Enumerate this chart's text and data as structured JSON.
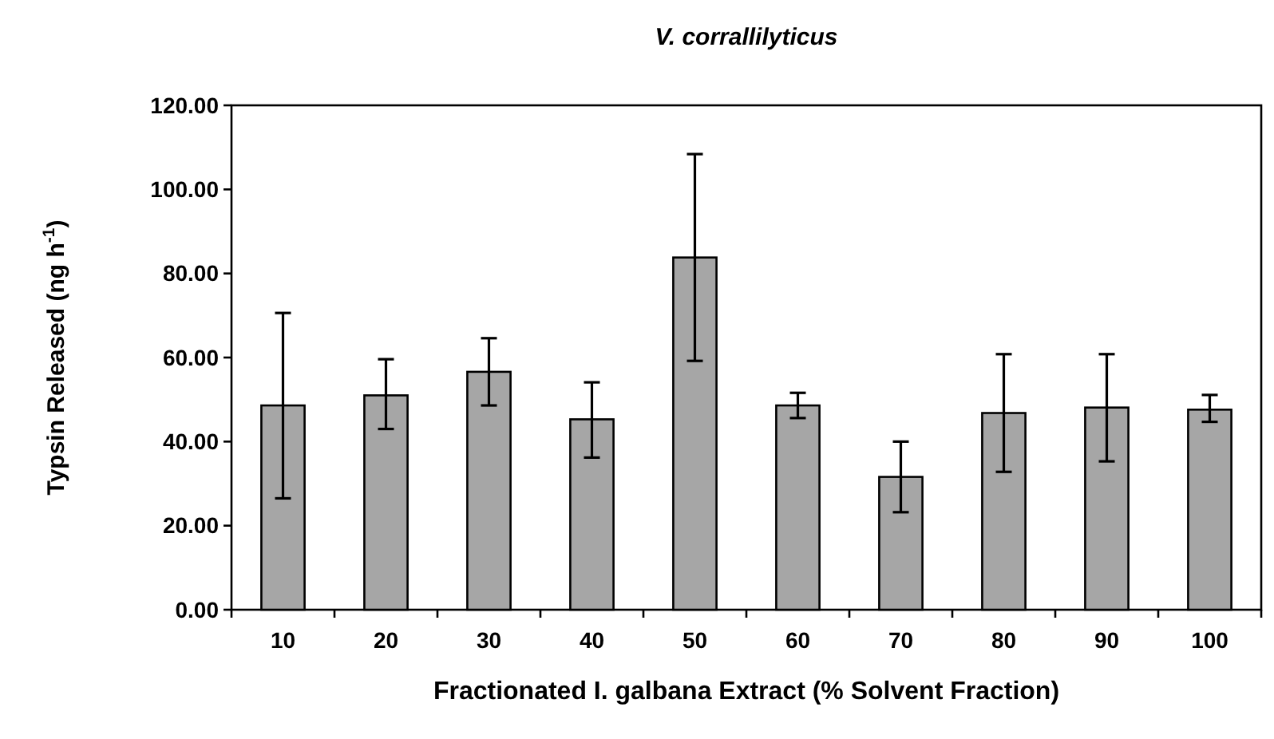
{
  "chart_data": {
    "type": "bar",
    "title": "V. corrallilyticus",
    "xlabel": "Fractionated I. galbana Extract (% Solvent Fraction)",
    "ylabel": "Typsin Released (ng h$^{-1}$)",
    "categories": [
      "10",
      "20",
      "30",
      "40",
      "50",
      "60",
      "70",
      "80",
      "90",
      "100"
    ],
    "values": [
      48.6,
      51.0,
      56.6,
      45.3,
      83.8,
      48.6,
      31.6,
      46.8,
      48.1,
      47.6
    ],
    "errors": [
      [
        26.5,
        70.6
      ],
      [
        43.0,
        59.6
      ],
      [
        48.6,
        64.6
      ],
      [
        36.2,
        54.1
      ],
      [
        59.2,
        108.4
      ],
      [
        45.6,
        51.6
      ],
      [
        23.2,
        40.0
      ],
      [
        32.8,
        60.8
      ],
      [
        35.3,
        60.8
      ],
      [
        44.7,
        51.1
      ]
    ],
    "color": "#a6a6a6",
    "ylim": [
      0,
      120
    ],
    "yticks": [
      {
        "value": 0,
        "label": "0.00"
      },
      {
        "value": 20,
        "label": "20.00"
      },
      {
        "value": 40,
        "label": "40.00"
      },
      {
        "value": 60,
        "label": "60.00"
      },
      {
        "value": 80,
        "label": "80.00"
      },
      {
        "value": 100,
        "label": "100.00"
      },
      {
        "value": 120,
        "label": "120.00"
      }
    ],
    "grid": false
  }
}
